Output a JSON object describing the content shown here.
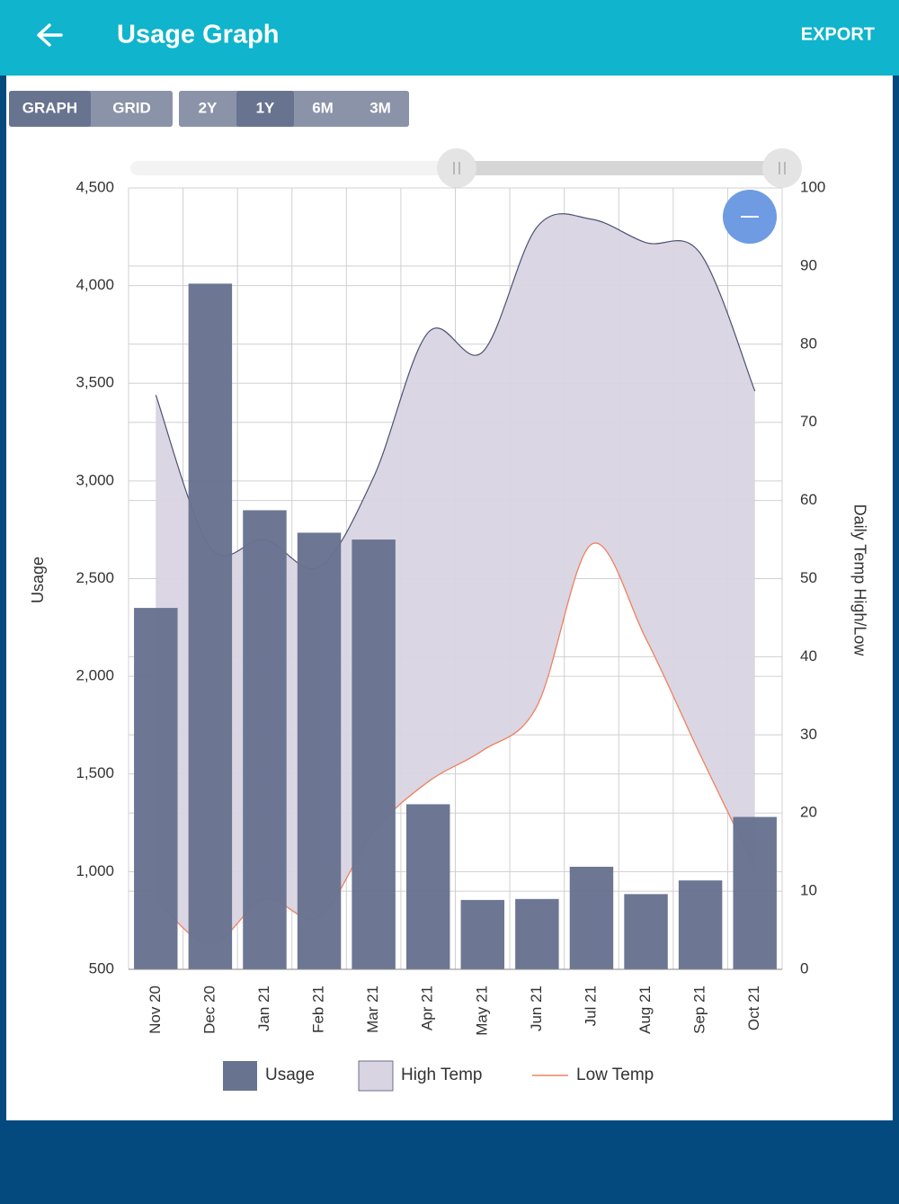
{
  "header": {
    "title": "Usage Graph",
    "action": "EXPORT"
  },
  "toolbar": {
    "view_buttons": [
      "GRAPH",
      "GRID"
    ],
    "view_selected": 0,
    "range_buttons": [
      "2Y",
      "1Y",
      "6M",
      "3M"
    ],
    "range_selected": 1
  },
  "chart_data": {
    "type": "bar_range",
    "categories": [
      "Nov 20",
      "Dec 20",
      "Jan 21",
      "Feb 21",
      "Mar 21",
      "Apr 21",
      "May 21",
      "Jun 21",
      "Jul 21",
      "Aug 21",
      "Sep 21",
      "Oct 21"
    ],
    "y_label": "Usage",
    "y2_label": "Daily Temp High/Low",
    "series": [
      {
        "name": "Usage",
        "color": "#68738f",
        "values": [
          2350,
          4010,
          2850,
          2735,
          2700,
          1345,
          855,
          860,
          1025,
          885,
          955,
          1280
        ]
      },
      {
        "name": "High Temp",
        "color": "#d8d4e2",
        "axis": "y2",
        "values": [
          73.5,
          54,
          55,
          51.5,
          63,
          81.5,
          79,
          95,
          96,
          93,
          91.6,
          74
        ]
      },
      {
        "name": "Low Temp",
        "color": "#f08060",
        "axis": "y2",
        "values": [
          9,
          3.2,
          9,
          6.7,
          17.6,
          24,
          28,
          33.7,
          54.4,
          42.3,
          27.4,
          13
        ]
      }
    ],
    "ylim": [
      500,
      4500
    ],
    "yticks": [
      500,
      {
        "value": 1000,
        "label": "1,000"
      },
      {
        "value": 1500,
        "label": "1,500"
      },
      {
        "value": 2000,
        "label": "2,000"
      },
      {
        "value": 2500,
        "label": "2,500"
      },
      {
        "value": 3000,
        "label": "3,000"
      },
      {
        "value": 3500,
        "label": "3,500"
      },
      {
        "value": 4000,
        "label": "4,000"
      },
      {
        "value": 4500,
        "label": "4,500"
      }
    ],
    "y2lim": [
      0,
      100
    ],
    "y2ticks": [
      0,
      10,
      20,
      30,
      40,
      50,
      60,
      70,
      80,
      90,
      100
    ],
    "grid": true
  }
}
